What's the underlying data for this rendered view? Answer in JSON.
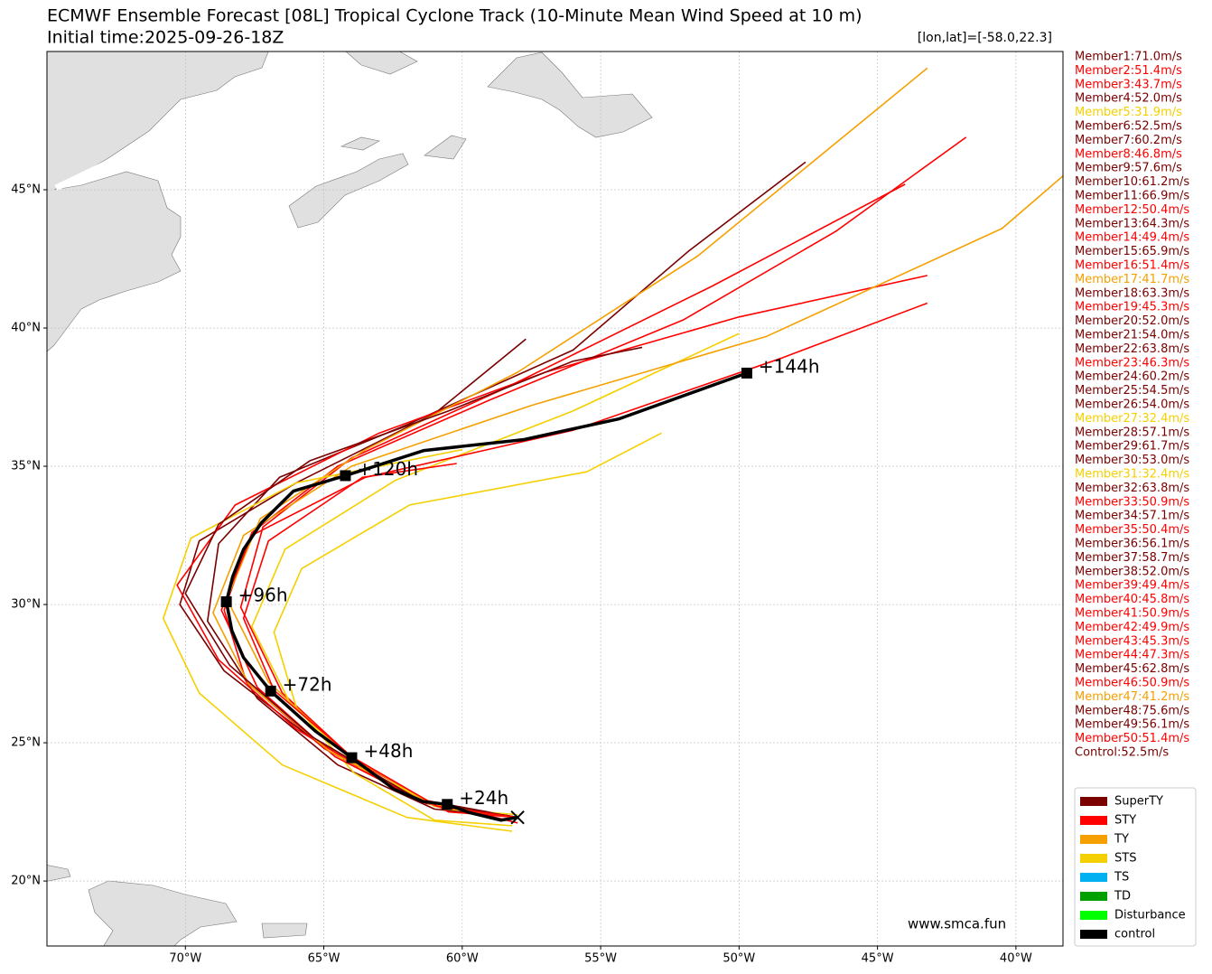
{
  "chart_data": {
    "type": "track-map",
    "title": "ECMWF Ensemble Forecast [08L] Tropical Cyclone Track (10-Minute Mean Wind Speed at 10 m)",
    "subtitle": "Initial time:2025-09-26-18Z",
    "position_label": "[lon,lat]=[-58.0,22.3]",
    "watermark": "www.smca.fun",
    "xlim": [
      -75,
      -38.3
    ],
    "ylim": [
      17.65,
      50
    ],
    "xticks": [
      {
        "value": -70,
        "label": "70°W"
      },
      {
        "value": -65,
        "label": "65°W"
      },
      {
        "value": -60,
        "label": "60°W"
      },
      {
        "value": -55,
        "label": "55°W"
      },
      {
        "value": -50,
        "label": "50°W"
      },
      {
        "value": -45,
        "label": "45°W"
      },
      {
        "value": -40,
        "label": "40°W"
      }
    ],
    "yticks": [
      {
        "value": 20,
        "label": "20°N"
      },
      {
        "value": 25,
        "label": "25°N"
      },
      {
        "value": 30,
        "label": "30°N"
      },
      {
        "value": 35,
        "label": "35°N"
      },
      {
        "value": 40,
        "label": "40°N"
      },
      {
        "value": 45,
        "label": "45°N"
      }
    ],
    "grid": true,
    "members": [
      {
        "label": "Member1:71.0m/s",
        "color": "#7a0000",
        "lon": [
          -58,
          -61,
          -64.5,
          -67.4,
          -69.2,
          -68.8,
          -66.6,
          -62,
          -56,
          -51.8,
          -47.6
        ],
        "lat": [
          22.3,
          22.6,
          24.2,
          26.6,
          29.4,
          32.2,
          34.6,
          36.5,
          39.2,
          42.8,
          46.0
        ]
      },
      {
        "label": "Member2:51.4m/s",
        "color": "#ff0000",
        "lon": [
          -58,
          -61.5,
          -65,
          -67.8,
          -68.6,
          -67.6,
          -64.5,
          -59,
          -52,
          -46.5,
          -41.8
        ],
        "lat": [
          22.3,
          22.9,
          24.8,
          27.2,
          29.8,
          32.6,
          35.0,
          37.4,
          40.3,
          43.5,
          46.9
        ]
      },
      {
        "label": "Member3:43.7m/s",
        "color": "#ff0000",
        "lon": [
          -58,
          -60.5,
          -63.8,
          -66.5,
          -68,
          -67.2,
          -64,
          -58.5,
          -51,
          -44
        ],
        "lat": [
          22.3,
          22.5,
          24.3,
          26.8,
          29.9,
          32.8,
          35.3,
          37.8,
          41.5,
          45.2
        ]
      },
      {
        "label": "Member4:52.0m/s",
        "color": "#7a0000",
        "lon": [
          -58,
          -61.8,
          -65.5,
          -68.6,
          -70.2,
          -69.5,
          -66,
          -61,
          -57.7
        ],
        "lat": [
          22.3,
          23.0,
          25.2,
          27.6,
          30.0,
          32.3,
          34.4,
          36.9,
          39.6
        ]
      },
      {
        "label": "Member5:31.9m/s",
        "color": "#f5d000",
        "lon": [
          -58.2,
          -61,
          -63.9,
          -66,
          -66.8,
          -65.8,
          -61.9,
          -55.5,
          -52.8
        ],
        "lat": [
          22.0,
          22.2,
          23.9,
          26.3,
          29.0,
          31.3,
          33.6,
          34.8,
          36.2
        ]
      },
      {
        "label": "Member6:52.5m/s",
        "color": "#7a0000"
      },
      {
        "label": "Member7:60.2m/s",
        "color": "#7a0000"
      },
      {
        "label": "Member8:46.8m/s",
        "color": "#ff0000",
        "lon": [
          -58,
          -62,
          -66,
          -68.8,
          -70.3,
          -68.2,
          -63,
          -57,
          -50,
          -43.2
        ],
        "lat": [
          22.1,
          23.1,
          25.5,
          28.0,
          30.7,
          33.6,
          36.2,
          38.4,
          40.4,
          41.9
        ]
      },
      {
        "label": "Member9:57.6m/s",
        "color": "#7a0000"
      },
      {
        "label": "Member10:61.2m/s",
        "color": "#7a0000"
      },
      {
        "label": "Member11:66.9m/s",
        "color": "#7a0000"
      },
      {
        "label": "Member12:50.4m/s",
        "color": "#ff0000"
      },
      {
        "label": "Member13:64.3m/s",
        "color": "#7a0000"
      },
      {
        "label": "Member14:49.4m/s",
        "color": "#ff0000"
      },
      {
        "label": "Member15:65.9m/s",
        "color": "#7a0000"
      },
      {
        "label": "Member16:51.4m/s",
        "color": "#ff0000"
      },
      {
        "label": "Member17:41.7m/s",
        "color": "#f5a000",
        "lon": [
          -58,
          -61,
          -64.2,
          -67,
          -68.5,
          -67.3,
          -63.5,
          -58,
          -51.5,
          -43.2
        ],
        "lat": [
          22.3,
          22.7,
          24.6,
          27.2,
          30.2,
          33.1,
          35.6,
          38.4,
          42.6,
          49.4
        ]
      },
      {
        "label": "Member18:63.3m/s",
        "color": "#7a0000"
      },
      {
        "label": "Member19:45.3m/s",
        "color": "#ff0000"
      },
      {
        "label": "Member20:52.0m/s",
        "color": "#7a0000"
      },
      {
        "label": "Member21:54.0m/s",
        "color": "#7a0000"
      },
      {
        "label": "Member22:63.8m/s",
        "color": "#7a0000"
      },
      {
        "label": "Member23:46.3m/s",
        "color": "#ff0000"
      },
      {
        "label": "Member24:60.2m/s",
        "color": "#7a0000"
      },
      {
        "label": "Member25:54.5m/s",
        "color": "#7a0000"
      },
      {
        "label": "Member26:54.0m/s",
        "color": "#7a0000"
      },
      {
        "label": "Member27:32.4m/s",
        "color": "#f5d000",
        "lon": [
          -58,
          -60.6,
          -63.7,
          -66.2,
          -67.6,
          -66.4,
          -62.4,
          -56,
          -50
        ],
        "lat": [
          22.4,
          22.6,
          24.1,
          26.4,
          29.2,
          32.0,
          34.5,
          37.0,
          39.8
        ]
      },
      {
        "label": "Member28:57.1m/s",
        "color": "#7a0000"
      },
      {
        "label": "Member29:61.7m/s",
        "color": "#7a0000"
      },
      {
        "label": "Member30:53.0m/s",
        "color": "#7a0000"
      },
      {
        "label": "Member31:32.4m/s",
        "color": "#f5d000",
        "lon": [
          -58.2,
          -62,
          -66.5,
          -69.5,
          -70.8,
          -69.8,
          -66,
          -60
        ],
        "lat": [
          21.8,
          22.3,
          24.2,
          26.8,
          29.5,
          32.4,
          34.4,
          35.6
        ]
      },
      {
        "label": "Member32:63.8m/s",
        "color": "#7a0000"
      },
      {
        "label": "Member33:50.9m/s",
        "color": "#ff0000",
        "lon": [
          -58,
          -61.3,
          -64.6,
          -67.4,
          -68.7,
          -67.6,
          -63.5,
          -56,
          -48.5,
          -43.2
        ],
        "lat": [
          22.3,
          22.8,
          24.5,
          27.0,
          29.8,
          32.5,
          34.6,
          36.3,
          38.9,
          40.9
        ]
      },
      {
        "label": "Member34:57.1m/s",
        "color": "#7a0000"
      },
      {
        "label": "Member35:50.4m/s",
        "color": "#ff0000"
      },
      {
        "label": "Member36:56.1m/s",
        "color": "#7a0000"
      },
      {
        "label": "Member37:58.7m/s",
        "color": "#7a0000"
      },
      {
        "label": "Member38:52.0m/s",
        "color": "#7a0000"
      },
      {
        "label": "Member39:49.4m/s",
        "color": "#ff0000"
      },
      {
        "label": "Member40:45.8m/s",
        "color": "#ff0000"
      },
      {
        "label": "Member41:50.9m/s",
        "color": "#ff0000"
      },
      {
        "label": "Member42:49.9m/s",
        "color": "#ff0000"
      },
      {
        "label": "Member43:45.3m/s",
        "color": "#ff0000"
      },
      {
        "label": "Member44:47.3m/s",
        "color": "#ff0000"
      },
      {
        "label": "Member45:62.8m/s",
        "color": "#7a0000"
      },
      {
        "label": "Member46:50.9m/s",
        "color": "#ff0000"
      },
      {
        "label": "Member47:41.2m/s",
        "color": "#f5a000",
        "lon": [
          -58,
          -61.2,
          -64.8,
          -67.7,
          -69,
          -67.9,
          -64,
          -57.5,
          -49,
          -40.5,
          -38.3
        ],
        "lat": [
          22.3,
          22.8,
          24.7,
          27.1,
          29.7,
          32.5,
          35.0,
          37.2,
          39.7,
          43.6,
          45.5
        ]
      },
      {
        "label": "Member48:75.6m/s",
        "color": "#7a0000",
        "lon": [
          -58,
          -61.5,
          -65.4,
          -68.4,
          -70,
          -68.8,
          -65.5,
          -60.5,
          -56,
          -53.5
        ],
        "lat": [
          22.3,
          22.9,
          25.2,
          27.8,
          30.4,
          32.9,
          35.2,
          37.0,
          38.8,
          39.3
        ]
      },
      {
        "label": "Member49:56.1m/s",
        "color": "#7a0000"
      },
      {
        "label": "Member50:51.4m/s",
        "color": "#ff0000",
        "lon": [
          -58,
          -60.9,
          -64,
          -66.8,
          -67.9,
          -67,
          -63.6,
          -60.2
        ],
        "lat": [
          22.3,
          22.7,
          24.5,
          26.9,
          29.5,
          32.3,
          34.6,
          35.1
        ]
      },
      {
        "label": "Control:52.5m/s",
        "color": "#7a0000"
      }
    ],
    "control": {
      "color": "#000000",
      "lon": [
        -58.0,
        -58.6,
        -59.76,
        -60.54,
        -61.4,
        -62.46,
        -63.99,
        -65.29,
        -66.92,
        -67.9,
        -68.32,
        -68.52,
        -68.29,
        -67.9,
        -67.25,
        -66.1,
        -64.22,
        -61.38,
        -57.8,
        -54.35,
        -49.72
      ],
      "lat": [
        22.3,
        22.2,
        22.48,
        22.77,
        22.87,
        23.32,
        24.46,
        25.41,
        26.87,
        28.08,
        29.05,
        30.1,
        31.01,
        31.99,
        32.96,
        34.1,
        34.66,
        35.57,
        35.96,
        36.71,
        38.37
      ],
      "markers": [
        {
          "lon": -60.54,
          "lat": 22.77,
          "label": "+24h"
        },
        {
          "lon": -63.99,
          "lat": 24.46,
          "label": "+48h"
        },
        {
          "lon": -66.92,
          "lat": 26.87,
          "label": "+72h"
        },
        {
          "lon": -68.52,
          "lat": 30.1,
          "label": "+96h"
        },
        {
          "lon": -64.22,
          "lat": 34.66,
          "label": "+120h"
        },
        {
          "lon": -49.72,
          "lat": 38.37,
          "label": "+144h"
        }
      ]
    },
    "legend": [
      {
        "name": "SuperTY",
        "color": "#7a0000"
      },
      {
        "name": "STY",
        "color": "#ff0000"
      },
      {
        "name": "TY",
        "color": "#f5a000"
      },
      {
        "name": "STS",
        "color": "#f5d000"
      },
      {
        "name": "TS",
        "color": "#00b0f0"
      },
      {
        "name": "TD",
        "color": "#00a000"
      },
      {
        "name": "Disturbance",
        "color": "#00ff00"
      },
      {
        "name": "control",
        "color": "#000000"
      }
    ]
  }
}
